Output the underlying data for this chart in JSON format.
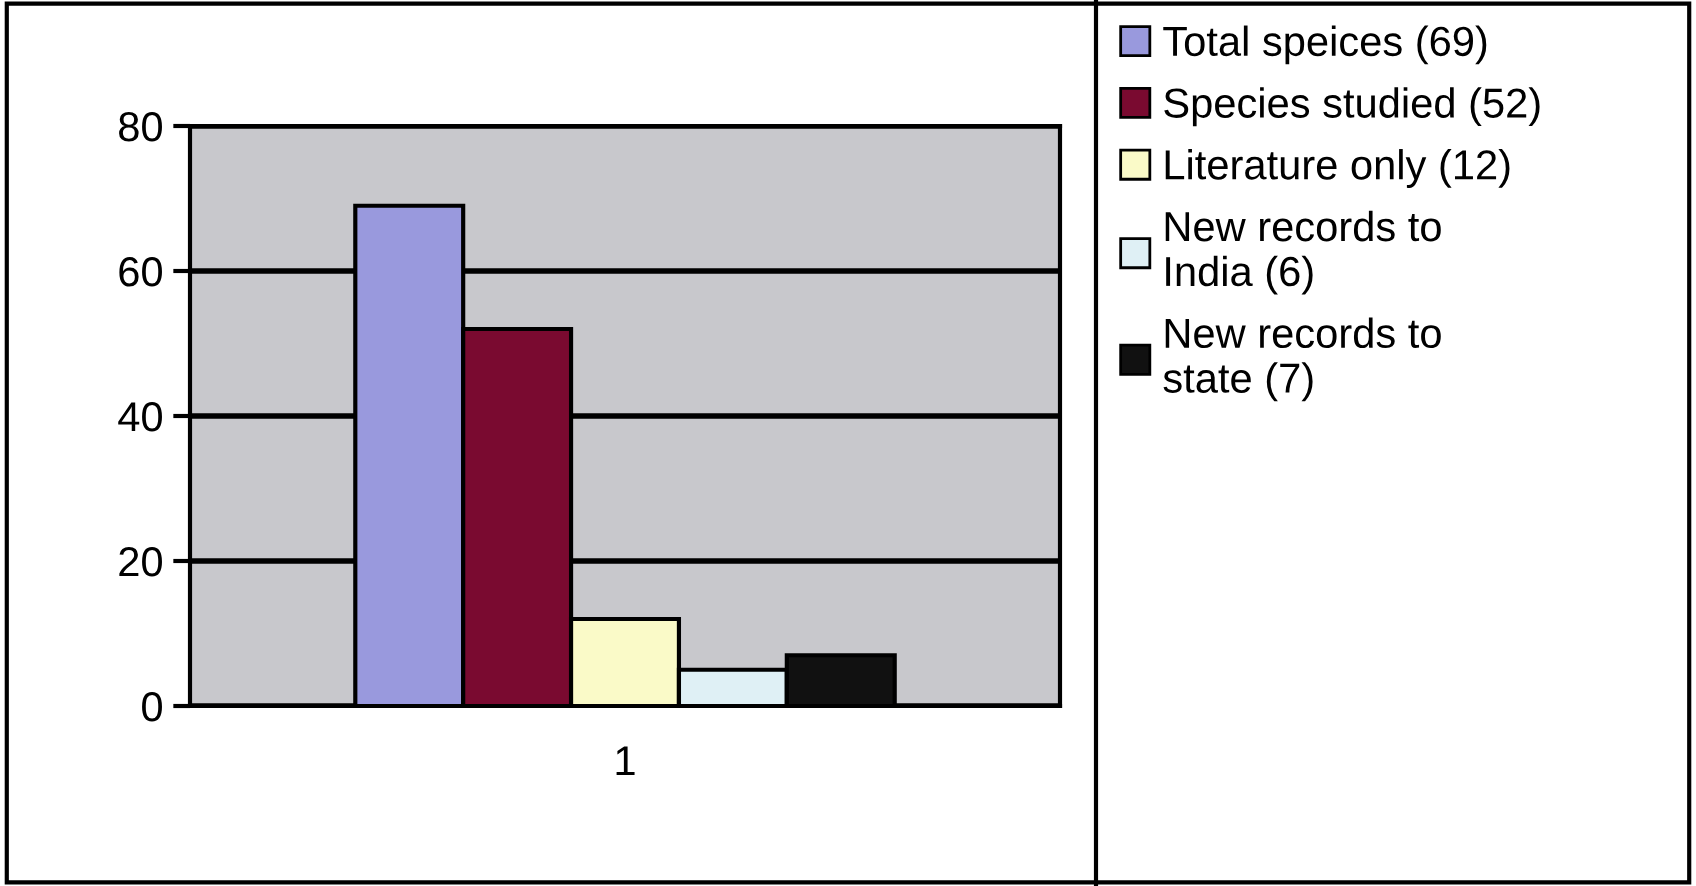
{
  "chart_data": {
    "type": "bar",
    "categories": [
      "1"
    ],
    "series": [
      {
        "name": "Total speices (69)",
        "color": "#9999dd",
        "values": [
          69
        ]
      },
      {
        "name": "Species studied (52)",
        "color": "#7a0a30",
        "values": [
          52
        ]
      },
      {
        "name": "Literature only (12)",
        "color": "#fafac8",
        "values": [
          12
        ]
      },
      {
        "name": "New records to India (6)",
        "color": "#dff0f5",
        "values": [
          5
        ]
      },
      {
        "name": "New records to state (7)",
        "color": "#111111",
        "values": [
          7
        ]
      }
    ],
    "ylim": [
      0,
      80
    ],
    "yticks": [
      0,
      20,
      40,
      60,
      80
    ],
    "grid": "y",
    "legend": "right"
  }
}
